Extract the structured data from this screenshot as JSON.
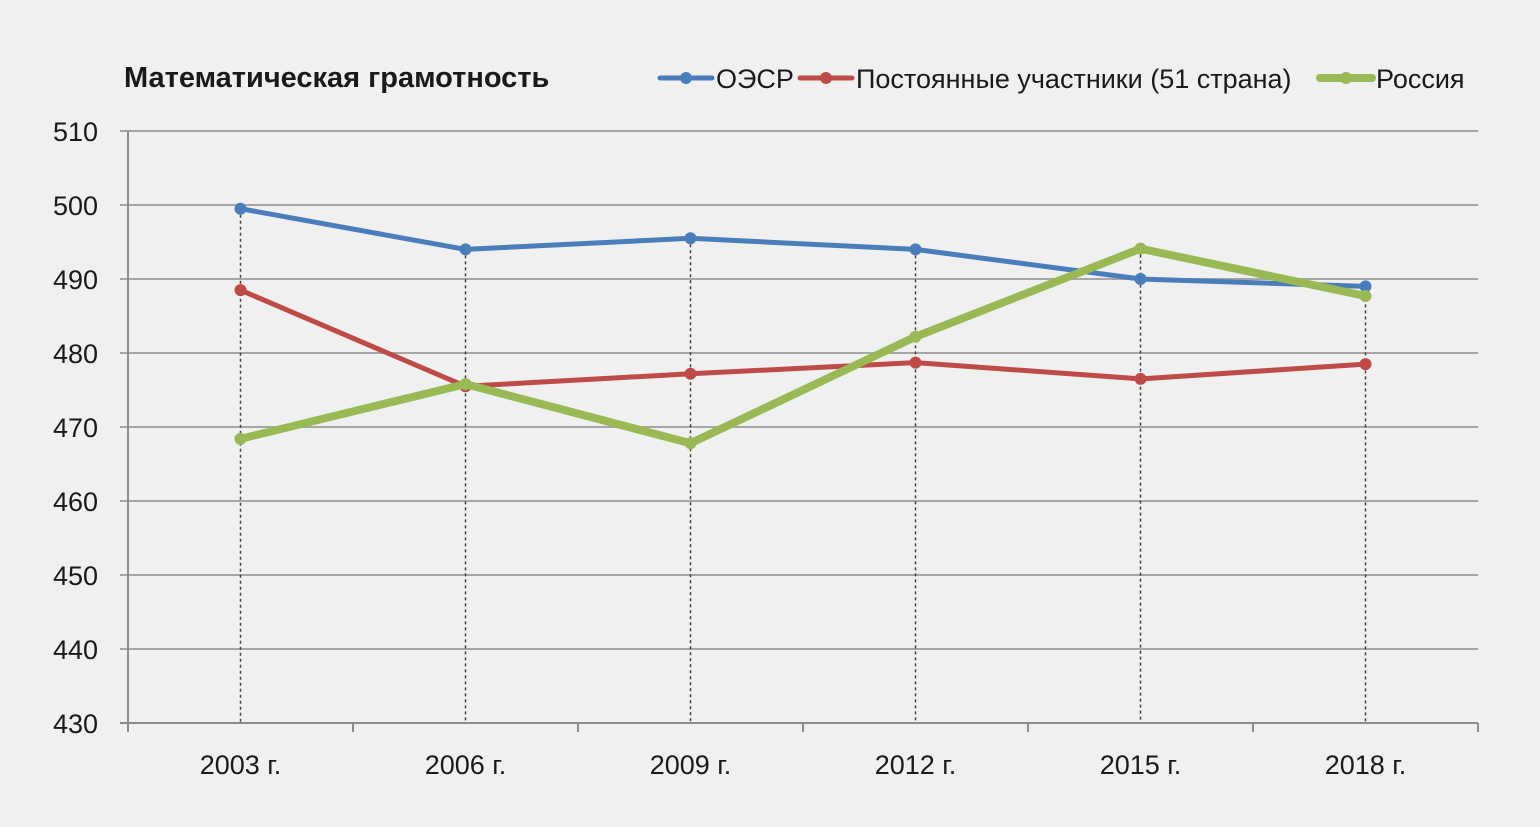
{
  "chart_data": {
    "type": "line",
    "title": "Математическая грамотность",
    "categories": [
      "2003 г.",
      "2006 г.",
      "2009 г.",
      "2012 г.",
      "2015 г.",
      "2018 г."
    ],
    "ylim": [
      430,
      510
    ],
    "yticks": [
      430,
      440,
      450,
      460,
      470,
      480,
      490,
      500,
      510
    ],
    "grid": true,
    "legend_position": "top-right",
    "series": [
      {
        "name": "ОЭСР",
        "color": "#4a7ebb",
        "values": [
          499.5,
          494,
          495.5,
          494,
          490,
          489
        ]
      },
      {
        "name": "Постоянные участники (51 страна)",
        "color": "#be4b48",
        "values": [
          488.5,
          475.5,
          477.2,
          478.7,
          476.5,
          478.5
        ]
      },
      {
        "name": "Россия",
        "color": "#98b954",
        "values": [
          468.4,
          475.8,
          467.8,
          482.2,
          494.1,
          487.7
        ]
      }
    ]
  }
}
